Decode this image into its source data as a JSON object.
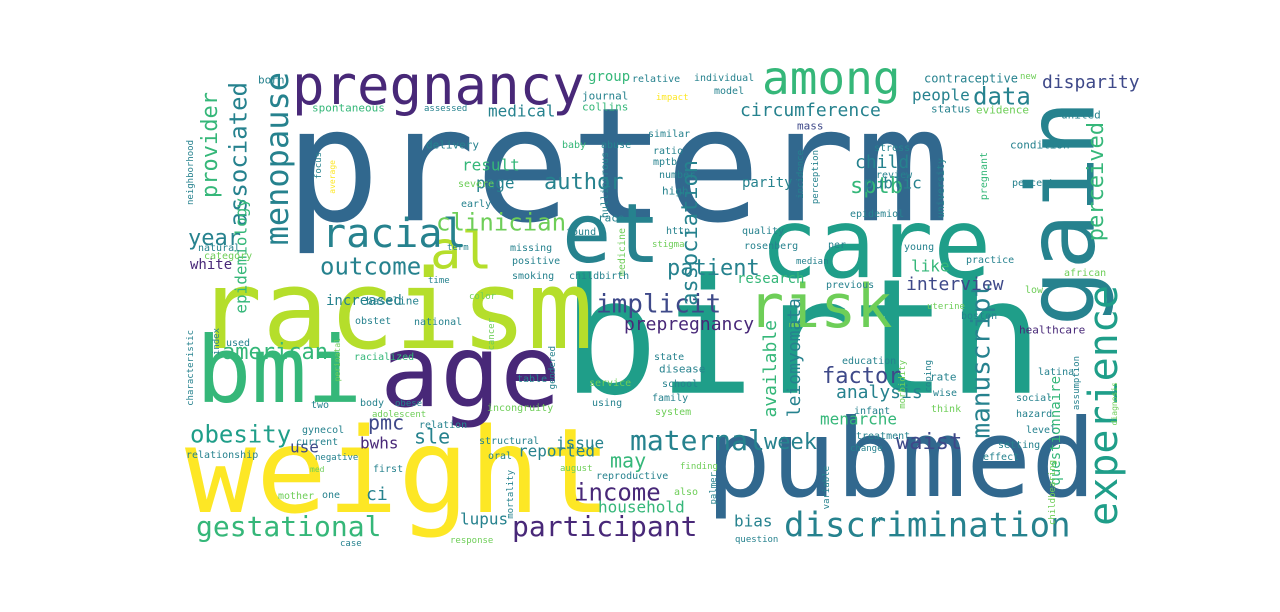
{
  "palette": {
    "yellow": "#fde725",
    "lime": "#b5de2b",
    "lightgreen": "#6ece58",
    "green": "#35b779",
    "teal": "#1f9e89",
    "tealblue": "#26828e",
    "blue": "#31688e",
    "indigo": "#3e4989",
    "violet": "#482878",
    "purple": "#440154"
  },
  "words": [
    {
      "text": "preterm",
      "c": "blue"
    },
    {
      "text": "birth",
      "c": "teal"
    },
    {
      "text": "weight",
      "c": "yellow"
    },
    {
      "text": "racism",
      "c": "lime"
    },
    {
      "text": "pubmed",
      "c": "blue"
    },
    {
      "text": "care",
      "c": "teal"
    },
    {
      "text": "et",
      "c": "tealblue"
    },
    {
      "text": "al",
      "c": "lime"
    },
    {
      "text": "age",
      "c": "violet"
    },
    {
      "text": "bmi",
      "c": "green"
    },
    {
      "text": "gain",
      "c": "tealblue"
    },
    {
      "text": "pregnancy",
      "c": "violet"
    },
    {
      "text": "among",
      "c": "green"
    },
    {
      "text": "risk",
      "c": "lightgreen"
    },
    {
      "text": "discrimination",
      "c": "tealblue"
    },
    {
      "text": "experience",
      "c": "teal"
    },
    {
      "text": "menopause",
      "c": "tealblue"
    },
    {
      "text": "racial",
      "c": "tealblue"
    },
    {
      "text": "gestational",
      "c": "green"
    },
    {
      "text": "maternal",
      "c": "tealblue"
    },
    {
      "text": "participant",
      "c": "violet"
    },
    {
      "text": "clinician",
      "c": "lightgreen"
    },
    {
      "text": "outcome",
      "c": "tealblue"
    },
    {
      "text": "implicit",
      "c": "indigo"
    },
    {
      "text": "obesity",
      "c": "teal"
    },
    {
      "text": "income",
      "c": "violet"
    },
    {
      "text": "manuscript",
      "c": "tealblue"
    },
    {
      "text": "association",
      "c": "tealblue"
    },
    {
      "text": "perceived",
      "c": "green"
    },
    {
      "text": "associated",
      "c": "tealblue"
    },
    {
      "text": "provider",
      "c": "green"
    },
    {
      "text": "data",
      "c": "tealblue"
    },
    {
      "text": "author",
      "c": "tealblue"
    },
    {
      "text": "patient",
      "c": "tealblue"
    },
    {
      "text": "american",
      "c": "green"
    },
    {
      "text": "factor",
      "c": "indigo"
    },
    {
      "text": "sptb",
      "c": "green"
    },
    {
      "text": "year",
      "c": "tealblue"
    },
    {
      "text": "waist",
      "c": "indigo"
    },
    {
      "text": "week",
      "c": "tealblue"
    },
    {
      "text": "circumference",
      "c": "tealblue"
    },
    {
      "text": "pmc",
      "c": "indigo"
    },
    {
      "text": "sle",
      "c": "tealblue"
    },
    {
      "text": "may",
      "c": "green"
    },
    {
      "text": "prepregnancy",
      "c": "violet"
    },
    {
      "text": "leiomyomata",
      "c": "tealblue"
    },
    {
      "text": "available",
      "c": "green"
    },
    {
      "text": "disparity",
      "c": "indigo"
    },
    {
      "text": "child",
      "c": "tealblue"
    },
    {
      "text": "people",
      "c": "tealblue"
    },
    {
      "text": "menarche",
      "c": "green"
    },
    {
      "text": "analysis",
      "c": "tealblue"
    },
    {
      "text": "interview",
      "c": "indigo"
    },
    {
      "text": "epidemiology",
      "c": "green"
    },
    {
      "text": "result",
      "c": "green"
    },
    {
      "text": "page",
      "c": "tealblue"
    },
    {
      "text": "medical",
      "c": "tealblue"
    },
    {
      "text": "household",
      "c": "green"
    },
    {
      "text": "lupus",
      "c": "tealblue"
    },
    {
      "text": "bias",
      "c": "tealblue"
    },
    {
      "text": "reported",
      "c": "tealblue"
    },
    {
      "text": "issue",
      "c": "tealblue"
    },
    {
      "text": "bwhs",
      "c": "violet"
    },
    {
      "text": "use",
      "c": "indigo"
    },
    {
      "text": "ci",
      "c": "tealblue"
    },
    {
      "text": "parity",
      "c": "tealblue"
    },
    {
      "text": "public",
      "c": "tealblue"
    },
    {
      "text": "like",
      "c": "green"
    },
    {
      "text": "increased",
      "c": "tealblue"
    },
    {
      "text": "white",
      "c": "violet"
    },
    {
      "text": "research",
      "c": "green"
    },
    {
      "text": "group",
      "c": "green"
    },
    {
      "text": "questionnaire",
      "c": "green"
    },
    {
      "text": "contraceptive",
      "c": "tealblue"
    },
    {
      "text": "relative",
      "c": "tealblue"
    },
    {
      "text": "individual",
      "c": "tealblue"
    },
    {
      "text": "born",
      "c": "tealblue"
    },
    {
      "text": "journal",
      "c": "tealblue"
    },
    {
      "text": "collins",
      "c": "green"
    },
    {
      "text": "spontaneous",
      "c": "green"
    },
    {
      "text": "assessed",
      "c": "tealblue"
    },
    {
      "text": "impact",
      "c": "yellow"
    },
    {
      "text": "model",
      "c": "tealblue"
    },
    {
      "text": "mass",
      "c": "indigo"
    },
    {
      "text": "status",
      "c": "tealblue"
    },
    {
      "text": "evidence",
      "c": "lightgreen"
    },
    {
      "text": "united",
      "c": "tealblue"
    },
    {
      "text": "new",
      "c": "lightgreen"
    },
    {
      "text": "condition",
      "c": "tealblue"
    },
    {
      "text": "similar",
      "c": "tealblue"
    },
    {
      "text": "baby",
      "c": "green"
    },
    {
      "text": "abuse",
      "c": "tealblue"
    },
    {
      "text": "ratio",
      "c": "tealblue"
    },
    {
      "text": "mptb",
      "c": "tealblue"
    },
    {
      "text": "number",
      "c": "tealblue"
    },
    {
      "text": "high",
      "c": "tealblue"
    },
    {
      "text": "delivery",
      "c": "tealblue"
    },
    {
      "text": "nulliparous",
      "c": "tealblue"
    },
    {
      "text": "severe",
      "c": "lightgreen"
    },
    {
      "text": "early",
      "c": "tealblue"
    },
    {
      "text": "neighborhood",
      "c": "tealblue"
    },
    {
      "text": "focus",
      "c": "tealblue"
    },
    {
      "text": "average",
      "c": "yellow"
    },
    {
      "text": "medicine",
      "c": "lightgreen"
    },
    {
      "text": "incidence",
      "c": "tealblue"
    },
    {
      "text": "perception",
      "c": "tealblue"
    },
    {
      "text": "stress",
      "c": "tealblue"
    },
    {
      "text": "review",
      "c": "tealblue"
    },
    {
      "text": "epidemiol",
      "c": "tealblue"
    },
    {
      "text": "university",
      "c": "tealblue"
    },
    {
      "text": "pregnant",
      "c": "green"
    },
    {
      "text": "percent",
      "c": "tealblue"
    },
    {
      "text": "natural",
      "c": "tealblue"
    },
    {
      "text": "category",
      "c": "lightgreen"
    },
    {
      "text": "found",
      "c": "tealblue"
    },
    {
      "text": "http",
      "c": "tealblue"
    },
    {
      "text": "quality",
      "c": "tealblue"
    },
    {
      "text": "race",
      "c": "tealblue"
    },
    {
      "text": "term",
      "c": "tealblue"
    },
    {
      "text": "missing",
      "c": "tealblue"
    },
    {
      "text": "positive",
      "c": "tealblue"
    },
    {
      "text": "smoking",
      "c": "tealblue"
    },
    {
      "text": "stigma",
      "c": "lightgreen"
    },
    {
      "text": "rosenberg",
      "c": "tealblue"
    },
    {
      "text": "per",
      "c": "tealblue"
    },
    {
      "text": "median",
      "c": "tealblue"
    },
    {
      "text": "young",
      "c": "tealblue"
    },
    {
      "text": "practice",
      "c": "tealblue"
    },
    {
      "text": "african",
      "c": "lightgreen"
    },
    {
      "text": "time",
      "c": "tealblue"
    },
    {
      "text": "childbirth",
      "c": "tealblue"
    },
    {
      "text": "previous",
      "c": "tealblue"
    },
    {
      "text": "uterine",
      "c": "lightgreen"
    },
    {
      "text": "boston",
      "c": "tealblue"
    },
    {
      "text": "low",
      "c": "lightgreen"
    },
    {
      "text": "baseline",
      "c": "tealblue"
    },
    {
      "text": "obstet",
      "c": "tealblue"
    },
    {
      "text": "national",
      "c": "tealblue"
    },
    {
      "text": "color",
      "c": "lightgreen"
    },
    {
      "text": "perinatal",
      "c": "lightgreen"
    },
    {
      "text": "cancer",
      "c": "lightgreen"
    },
    {
      "text": "index",
      "c": "tealblue"
    },
    {
      "text": "used",
      "c": "tealblue"
    },
    {
      "text": "racialized",
      "c": "green"
    },
    {
      "text": "healthcare",
      "c": "violet"
    },
    {
      "text": "characteristic",
      "c": "tealblue"
    },
    {
      "text": "state",
      "c": "tealblue"
    },
    {
      "text": "education",
      "c": "tealblue"
    },
    {
      "text": "disease",
      "c": "tealblue"
    },
    {
      "text": "service",
      "c": "lightgreen"
    },
    {
      "text": "school",
      "c": "tealblue"
    },
    {
      "text": "table",
      "c": "tealblue"
    },
    {
      "text": "gendered",
      "c": "tealblue"
    },
    {
      "text": "rate",
      "c": "tealblue"
    },
    {
      "text": "wise",
      "c": "tealblue"
    },
    {
      "text": "think",
      "c": "lightgreen"
    },
    {
      "text": "latina",
      "c": "tealblue"
    },
    {
      "text": "assumption",
      "c": "tealblue"
    },
    {
      "text": "diagnosis",
      "c": "lightgreen"
    },
    {
      "text": "two",
      "c": "tealblue"
    },
    {
      "text": "body",
      "c": "tealblue"
    },
    {
      "text": "obese",
      "c": "tealblue"
    },
    {
      "text": "adolescent",
      "c": "lightgreen"
    },
    {
      "text": "using",
      "c": "tealblue"
    },
    {
      "text": "family",
      "c": "tealblue"
    },
    {
      "text": "system",
      "c": "lightgreen"
    },
    {
      "text": "incongruity",
      "c": "lightgreen"
    },
    {
      "text": "relation",
      "c": "tealblue"
    },
    {
      "text": "coping",
      "c": "tealblue"
    },
    {
      "text": "infant",
      "c": "tealblue"
    },
    {
      "text": "morbidity",
      "c": "lightgreen"
    },
    {
      "text": "social",
      "c": "tealblue"
    },
    {
      "text": "hazard",
      "c": "tealblue"
    },
    {
      "text": "level",
      "c": "tealblue"
    },
    {
      "text": "current",
      "c": "tealblue"
    },
    {
      "text": "gynecol",
      "c": "tealblue"
    },
    {
      "text": "treatment",
      "c": "tealblue"
    },
    {
      "text": "change",
      "c": "tealblue"
    },
    {
      "text": "setting",
      "c": "tealblue"
    },
    {
      "text": "relationship",
      "c": "tealblue"
    },
    {
      "text": "negative",
      "c": "tealblue"
    },
    {
      "text": "structural",
      "c": "tealblue"
    },
    {
      "text": "oral",
      "c": "tealblue"
    },
    {
      "text": "effect",
      "c": "tealblue"
    },
    {
      "text": "first",
      "c": "tealblue"
    },
    {
      "text": "august",
      "c": "lightgreen"
    },
    {
      "text": "finding",
      "c": "lightgreen"
    },
    {
      "text": "variable",
      "c": "tealblue"
    },
    {
      "text": "med",
      "c": "lightgreen"
    },
    {
      "text": "mother",
      "c": "lightgreen"
    },
    {
      "text": "reproductive",
      "c": "tealblue"
    },
    {
      "text": "also",
      "c": "lightgreen"
    },
    {
      "text": "one",
      "c": "tealblue"
    },
    {
      "text": "palmer",
      "c": "tealblue"
    },
    {
      "text": "mortality",
      "c": "tealblue"
    },
    {
      "text": "childbearing",
      "c": "lightgreen"
    },
    {
      "text": "or",
      "c": "tealblue"
    },
    {
      "text": "case",
      "c": "tealblue"
    },
    {
      "text": "response",
      "c": "lightgreen"
    },
    {
      "text": "question",
      "c": "tealblue"
    }
  ]
}
